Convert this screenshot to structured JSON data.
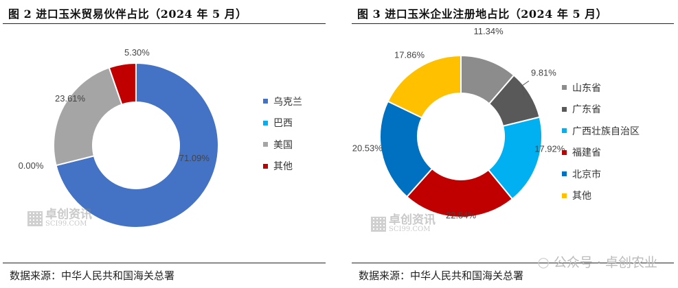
{
  "left": {
    "title": "图 2 进口玉米贸易伙伴占比（2024 年 5 月）",
    "source": "数据来源：中华人民共和国海关总署",
    "watermark_cn": "卓创资讯",
    "watermark_en": "SCI99.COM"
  },
  "right": {
    "title": "图 3 进口玉米企业注册地占比（2024 年 5 月）",
    "source": "数据来源：中华人民共和国海关总署",
    "watermark_cn": "卓创资讯",
    "watermark_en": "SCI99.COM",
    "wechat_label": "公众号 · 卓创农业"
  },
  "chart_data": [
    {
      "type": "pie",
      "title": "图 2 进口玉米贸易伙伴占比（2024 年 5 月）",
      "legend_position": "right",
      "categories": [
        "乌克兰",
        "巴西",
        "美国",
        "其他"
      ],
      "values": [
        71.09,
        0.0,
        23.61,
        5.3
      ],
      "labels": [
        "71.09%",
        "0.00%",
        "23.61%",
        "5.30%"
      ],
      "colors": [
        "#4472C4",
        "#00B0F0",
        "#A5A5A5",
        "#C00000"
      ]
    },
    {
      "type": "pie",
      "title": "图 3 进口玉米企业注册地占比（2024 年 5 月）",
      "legend_position": "right",
      "categories": [
        "山东省",
        "广东省",
        "广西壮族自治区",
        "福建省",
        "北京市",
        "其他"
      ],
      "values": [
        11.34,
        9.81,
        17.92,
        22.54,
        20.53,
        17.86
      ],
      "labels": [
        "11.34%",
        "9.81%",
        "17.92%",
        "22.54%",
        "20.53%",
        "17.86%"
      ],
      "colors": [
        "#8C8C8C",
        "#595959",
        "#00B0F0",
        "#C00000",
        "#0070C0",
        "#FFC000"
      ]
    }
  ]
}
